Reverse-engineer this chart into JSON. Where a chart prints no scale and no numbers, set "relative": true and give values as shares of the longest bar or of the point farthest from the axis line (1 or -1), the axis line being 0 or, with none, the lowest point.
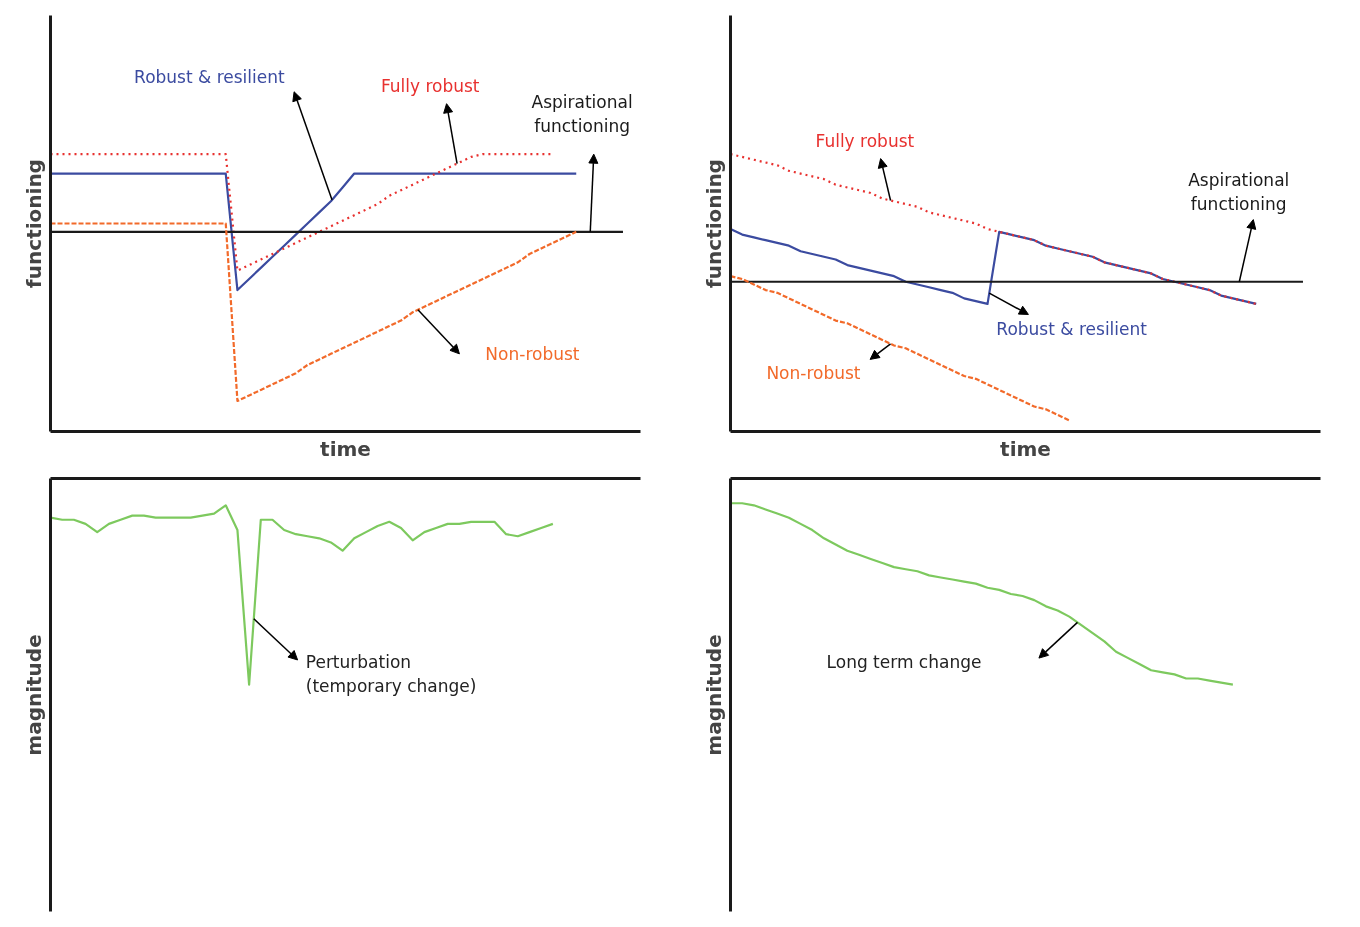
{
  "chart_data": [
    {
      "type": "line",
      "relative": true,
      "tick_labels": false,
      "xlabel": "time",
      "ylabel": "functioning",
      "categories": [
        null,
        null,
        null,
        null,
        null,
        null,
        null,
        null,
        null,
        null,
        null,
        null,
        null,
        null,
        null,
        null,
        null,
        null,
        null,
        null,
        null,
        null,
        null,
        null,
        null,
        null,
        null,
        null,
        null,
        null,
        null,
        null,
        null,
        null,
        null,
        null,
        null,
        null,
        null,
        null,
        null,
        null,
        null,
        null,
        null,
        null,
        null,
        null,
        null,
        null,
        null
      ],
      "series": [
        {
          "name": "Robust & resilient",
          "color": "#3b4ba0",
          "line_style": "solid",
          "values": [
            0.93,
            0.93,
            0.93,
            0.93,
            0.93,
            0.93,
            0.93,
            0.93,
            0.93,
            0.93,
            0.93,
            0.93,
            0.93,
            0.93,
            0.93,
            0.93,
            0.51,
            0.55,
            0.59,
            0.63,
            0.67,
            0.71,
            0.75,
            0.79,
            0.83,
            0.88,
            0.93,
            0.93,
            0.93,
            0.93,
            0.93,
            0.93,
            0.93,
            0.93,
            0.93,
            0.93,
            0.93,
            0.93,
            0.93,
            0.93,
            0.93,
            0.93,
            0.93,
            0.93,
            0.93,
            0.93,
            null,
            null,
            null,
            null,
            null
          ]
        },
        {
          "name": "Fully robust",
          "color": "#e8312f",
          "line_style": "dotted",
          "values": [
            1.0,
            1.0,
            1.0,
            1.0,
            1.0,
            1.0,
            1.0,
            1.0,
            1.0,
            1.0,
            1.0,
            1.0,
            1.0,
            1.0,
            1.0,
            1.0,
            0.58,
            0.6,
            0.62,
            0.64,
            0.66,
            0.68,
            0.7,
            0.72,
            0.74,
            0.76,
            0.78,
            0.8,
            0.82,
            0.85,
            0.87,
            0.89,
            0.91,
            0.93,
            0.95,
            0.97,
            0.99,
            1.0,
            1.0,
            1.0,
            1.0,
            1.0,
            1.0,
            1.0,
            null,
            null,
            null,
            null,
            null,
            null,
            null
          ]
        },
        {
          "name": "Aspirational functioning",
          "color": "#1a1a1a",
          "line_style": "solid",
          "values": [
            0.72,
            0.72,
            0.72,
            0.72,
            0.72,
            0.72,
            0.72,
            0.72,
            0.72,
            0.72,
            0.72,
            0.72,
            0.72,
            0.72,
            0.72,
            0.72,
            0.72,
            0.72,
            0.72,
            0.72,
            0.72,
            0.72,
            0.72,
            0.72,
            0.72,
            0.72,
            0.72,
            0.72,
            0.72,
            0.72,
            0.72,
            0.72,
            0.72,
            0.72,
            0.72,
            0.72,
            0.72,
            0.72,
            0.72,
            0.72,
            0.72,
            0.72,
            0.72,
            0.72,
            0.72,
            0.72,
            0.72,
            0.72,
            0.72,
            0.72,
            null
          ]
        },
        {
          "name": "Non-robust",
          "color": "#f26a2a",
          "line_style": "dashed",
          "values": [
            0.75,
            0.75,
            0.75,
            0.75,
            0.75,
            0.75,
            0.75,
            0.75,
            0.75,
            0.75,
            0.75,
            0.75,
            0.75,
            0.75,
            0.75,
            0.75,
            0.11,
            0.13,
            0.15,
            0.17,
            0.19,
            0.21,
            0.24,
            0.26,
            0.28,
            0.3,
            0.32,
            0.34,
            0.36,
            0.38,
            0.4,
            0.43,
            0.45,
            0.47,
            0.49,
            0.51,
            0.53,
            0.55,
            0.57,
            0.59,
            0.61,
            0.64,
            0.66,
            0.68,
            0.7,
            0.72,
            null,
            null,
            null,
            null,
            null
          ]
        }
      ]
    },
    {
      "type": "line",
      "relative": true,
      "tick_labels": false,
      "xlabel": "time",
      "ylabel": "functioning",
      "categories": [
        null,
        null,
        null,
        null,
        null,
        null,
        null,
        null,
        null,
        null,
        null,
        null,
        null,
        null,
        null,
        null,
        null,
        null,
        null,
        null,
        null,
        null,
        null,
        null,
        null,
        null,
        null,
        null,
        null,
        null,
        null,
        null,
        null,
        null,
        null,
        null,
        null,
        null,
        null,
        null,
        null,
        null,
        null,
        null,
        null,
        null,
        null,
        null,
        null,
        null,
        null
      ],
      "series": [
        {
          "name": "Robust & resilient",
          "color": "#3b4ba0",
          "line_style": "solid",
          "values": [
            0.73,
            0.71,
            0.7,
            0.69,
            0.68,
            0.67,
            0.65,
            0.64,
            0.63,
            0.62,
            0.6,
            0.59,
            0.58,
            0.57,
            0.56,
            0.54,
            0.53,
            0.52,
            0.51,
            0.5,
            0.48,
            0.47,
            0.46,
            0.72,
            0.71,
            0.7,
            0.69,
            0.67,
            0.66,
            0.65,
            0.64,
            0.63,
            0.61,
            0.6,
            0.59,
            0.58,
            0.57,
            0.55,
            0.54,
            0.53,
            0.52,
            0.51,
            0.49,
            0.48,
            0.47,
            0.46,
            null,
            null,
            null,
            null,
            null
          ]
        },
        {
          "name": "Fully robust",
          "color": "#e8312f",
          "line_style": "dotted",
          "values": [
            1.0,
            0.99,
            0.98,
            0.97,
            0.96,
            0.94,
            0.93,
            0.92,
            0.91,
            0.89,
            0.88,
            0.87,
            0.86,
            0.84,
            0.83,
            0.82,
            0.81,
            0.79,
            0.78,
            0.77,
            0.76,
            0.75,
            0.73,
            0.72,
            0.71,
            0.7,
            0.69,
            0.67,
            0.66,
            0.65,
            0.64,
            0.63,
            0.61,
            0.6,
            0.59,
            0.58,
            0.57,
            0.55,
            0.54,
            0.53,
            0.52,
            0.51,
            0.49,
            0.48,
            0.47,
            0.46,
            null,
            null,
            null,
            null,
            null
          ]
        },
        {
          "name": "Aspirational functioning",
          "color": "#1a1a1a",
          "line_style": "solid",
          "values": [
            0.54,
            0.54,
            0.54,
            0.54,
            0.54,
            0.54,
            0.54,
            0.54,
            0.54,
            0.54,
            0.54,
            0.54,
            0.54,
            0.54,
            0.54,
            0.54,
            0.54,
            0.54,
            0.54,
            0.54,
            0.54,
            0.54,
            0.54,
            0.54,
            0.54,
            0.54,
            0.54,
            0.54,
            0.54,
            0.54,
            0.54,
            0.54,
            0.54,
            0.54,
            0.54,
            0.54,
            0.54,
            0.54,
            0.54,
            0.54,
            0.54,
            0.54,
            0.54,
            0.54,
            0.54,
            0.54,
            0.54,
            0.54,
            0.54,
            0.54,
            null
          ]
        },
        {
          "name": "Non-robust",
          "color": "#f26a2a",
          "line_style": "dashed",
          "values": [
            0.56,
            0.55,
            0.53,
            0.51,
            0.5,
            0.48,
            0.46,
            0.44,
            0.42,
            0.4,
            0.39,
            0.37,
            0.35,
            0.33,
            0.31,
            0.3,
            0.28,
            0.26,
            0.24,
            0.22,
            0.2,
            0.19,
            0.17,
            0.15,
            0.13,
            0.11,
            0.09,
            0.08,
            0.06,
            0.04,
            null,
            null,
            null,
            null,
            null,
            null,
            null,
            null,
            null,
            null,
            null,
            null,
            null,
            null,
            null,
            null,
            null,
            null,
            null,
            null,
            null
          ]
        }
      ]
    },
    {
      "type": "line",
      "relative": true,
      "tick_labels": false,
      "ylabel": "magnitude",
      "annotations": [
        "Perturbation\n(temporary change)"
      ],
      "categories": [
        null,
        null,
        null,
        null,
        null,
        null,
        null,
        null,
        null,
        null,
        null,
        null,
        null,
        null,
        null,
        null,
        null,
        null,
        null,
        null,
        null,
        null,
        null,
        null,
        null,
        null,
        null,
        null,
        null,
        null,
        null,
        null,
        null,
        null,
        null,
        null,
        null,
        null,
        null,
        null,
        null,
        null,
        null,
        null,
        null,
        null,
        null,
        null,
        null,
        null,
        null
      ],
      "series": [
        {
          "color": "#7dc95e",
          "line_style": "solid",
          "values": [
            -0.19,
            -0.2,
            -0.2,
            -0.22,
            -0.26,
            -0.22,
            -0.2,
            -0.18,
            -0.18,
            -0.19,
            -0.19,
            -0.19,
            -0.19,
            -0.18,
            -0.17,
            -0.13,
            -0.25,
            -1.0,
            -0.2,
            -0.2,
            -0.25,
            -0.27,
            -0.28,
            -0.29,
            -0.31,
            -0.35,
            -0.29,
            -0.26,
            -0.23,
            -0.21,
            -0.24,
            -0.3,
            -0.26,
            -0.24,
            -0.22,
            -0.22,
            -0.21,
            -0.21,
            -0.21,
            -0.27,
            -0.28,
            -0.26,
            -0.24,
            -0.22,
            null,
            null,
            null,
            null,
            null,
            null,
            null
          ]
        }
      ]
    },
    {
      "type": "line",
      "relative": true,
      "tick_labels": false,
      "ylabel": "magnitude",
      "annotations": [
        "Long term change"
      ],
      "categories": [
        null,
        null,
        null,
        null,
        null,
        null,
        null,
        null,
        null,
        null,
        null,
        null,
        null,
        null,
        null,
        null,
        null,
        null,
        null,
        null,
        null,
        null,
        null,
        null,
        null,
        null,
        null,
        null,
        null,
        null,
        null,
        null,
        null,
        null,
        null,
        null,
        null,
        null,
        null,
        null,
        null,
        null,
        null,
        null,
        null,
        null,
        null,
        null,
        null,
        null,
        null
      ],
      "series": [
        {
          "color": "#7dc95e",
          "line_style": "solid",
          "values": [
            -0.12,
            -0.12,
            -0.13,
            -0.15,
            -0.17,
            -0.19,
            -0.22,
            -0.25,
            -0.29,
            -0.32,
            -0.35,
            -0.37,
            -0.39,
            -0.41,
            -0.43,
            -0.44,
            -0.45,
            -0.47,
            -0.48,
            -0.49,
            -0.5,
            -0.51,
            -0.53,
            -0.54,
            -0.56,
            -0.57,
            -0.59,
            -0.62,
            -0.64,
            -0.67,
            -0.71,
            -0.75,
            -0.79,
            -0.84,
            -0.87,
            -0.9,
            -0.93,
            -0.94,
            -0.95,
            -0.97,
            -0.97,
            -0.98,
            -0.99,
            -1.0,
            null,
            null,
            null,
            null,
            null,
            null,
            null
          ]
        }
      ]
    }
  ]
}
